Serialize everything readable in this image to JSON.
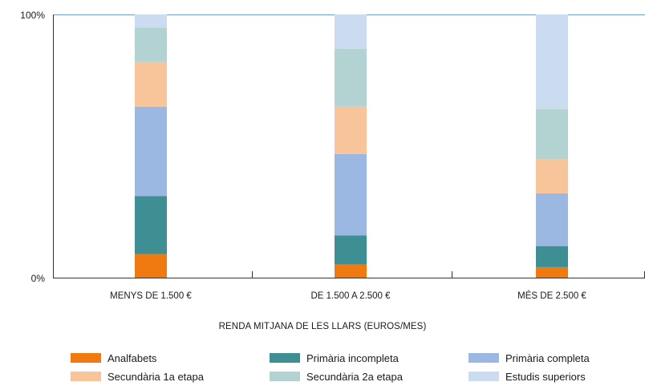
{
  "chart_data": {
    "type": "bar",
    "stacked": true,
    "normalized": true,
    "categories": [
      "MENYS DE 1.500 €",
      "DE 1.500 A 2.500 €",
      "MÉS DE 2.500 €"
    ],
    "series": [
      {
        "name": "Analfabets",
        "color": "#f07a10",
        "values": [
          9,
          5,
          4
        ]
      },
      {
        "name": "Primària incompleta",
        "color": "#3d8f94",
        "values": [
          22,
          11,
          8
        ]
      },
      {
        "name": "Primària completa",
        "color": "#9ab8e2",
        "values": [
          34,
          31,
          20
        ]
      },
      {
        "name": "Secundària 1a etapa",
        "color": "#f8c49a",
        "values": [
          17,
          18,
          13
        ]
      },
      {
        "name": "Secundària 2a etapa",
        "color": "#b3d3d3",
        "values": [
          13,
          22,
          19
        ]
      },
      {
        "name": "Estudis superiors",
        "color": "#ccdcf0",
        "values": [
          5,
          13,
          36
        ]
      }
    ],
    "xlabel": "RENDA MITJANA DE LES LLARS (EUROS/MES)",
    "ylabel": "",
    "ylim": [
      0,
      100
    ],
    "yticks": [
      "100%",
      "0%"
    ],
    "grid": false,
    "legend_position": "bottom"
  }
}
